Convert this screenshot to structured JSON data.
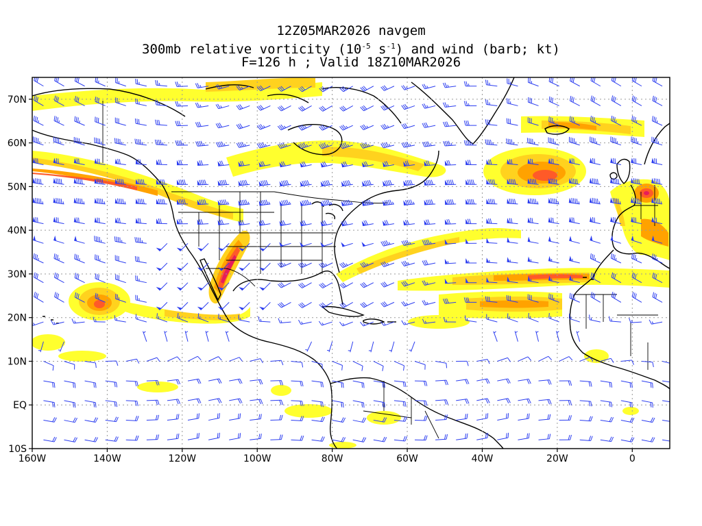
{
  "header": {
    "line1": "12Z05MAR2026 navgem",
    "line2_prefix": "300mb relative vorticity (10",
    "line2_exp1": "-5",
    "line2_mid": " s",
    "line2_exp2": "-1",
    "line2_suffix": ") and wind (barb; kt)",
    "line3": "F=126 h ; Valid 18Z10MAR2026"
  },
  "map": {
    "projection": "lat-lon",
    "lon_range": [
      -160,
      10
    ],
    "lat_range": [
      -10,
      75
    ],
    "x_ticks": [
      {
        "lon": -160,
        "label": "160W"
      },
      {
        "lon": -140,
        "label": "140W"
      },
      {
        "lon": -120,
        "label": "120W"
      },
      {
        "lon": -100,
        "label": "100W"
      },
      {
        "lon": -80,
        "label": "80W"
      },
      {
        "lon": -60,
        "label": "60W"
      },
      {
        "lon": -40,
        "label": "40W"
      },
      {
        "lon": -20,
        "label": "20W"
      },
      {
        "lon": 0,
        "label": "0"
      }
    ],
    "y_ticks": [
      {
        "lat": 70,
        "label": "70N"
      },
      {
        "lat": 60,
        "label": "60N"
      },
      {
        "lat": 50,
        "label": "50N"
      },
      {
        "lat": 40,
        "label": "40N"
      },
      {
        "lat": 30,
        "label": "30N"
      },
      {
        "lat": 20,
        "label": "20N"
      },
      {
        "lat": 10,
        "label": "10N"
      },
      {
        "lat": 0,
        "label": "EQ"
      },
      {
        "lat": -10,
        "label": "10S"
      }
    ],
    "colors": {
      "shade_low": "#ffff2e",
      "shade_mid": "#ffd21e",
      "shade_high": "#ffa200",
      "shade_max": "#ff5a28",
      "shade_peak": "#e61e5a",
      "barb": "#2a3cf0",
      "coast": "#000000",
      "grid": "#9a9a9a"
    }
  }
}
